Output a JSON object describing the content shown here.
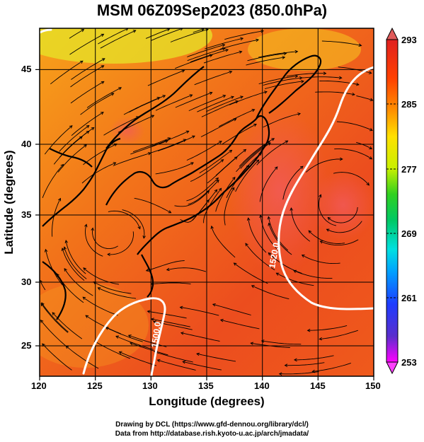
{
  "title": "MSM 06Z09Sep2023 (850.0hPa)",
  "axes": {
    "xlabel": "Longitude (degrees)",
    "ylabel": "Latitude  (degrees)",
    "xticks": [
      "120",
      "125",
      "130",
      "135",
      "140",
      "145",
      "150"
    ],
    "yticks": [
      "25",
      "30",
      "35",
      "40",
      "45"
    ],
    "xrange": [
      120,
      150
    ],
    "yrange": [
      22.4,
      47.6
    ]
  },
  "colorbar": {
    "labels": [
      "293",
      "285",
      "277",
      "269",
      "261",
      "253"
    ],
    "range": [
      253,
      293
    ],
    "colors": [
      "#ff00ff",
      "#5a2ecc",
      "#1e3cff",
      "#00a0ff",
      "#00e0e0",
      "#00c864",
      "#30d020",
      "#c8f000",
      "#ffe000",
      "#ff9000",
      "#ff4000",
      "#e02020"
    ]
  },
  "contours": [
    {
      "label": "1500.0"
    },
    {
      "label": "1520.0"
    }
  ],
  "credits": {
    "line1": "Drawing by DCL (https://www.gfd-dennou.org/library/dcl/)",
    "line2": "Data from http://database.rish.kyoto-u.ac.jp/arch/jmadata/"
  }
}
